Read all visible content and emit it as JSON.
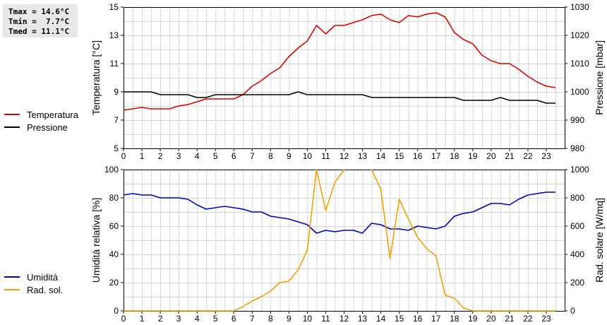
{
  "stats": {
    "tmax": "Tmax = 14.6°C",
    "tmin": "Tmin =  7.7°C",
    "tmed": "Tmed = 11.1°C"
  },
  "chart_data": [
    {
      "type": "line",
      "x_ticks": [
        0,
        1,
        2,
        3,
        4,
        5,
        6,
        7,
        8,
        9,
        10,
        11,
        12,
        13,
        14,
        15,
        16,
        17,
        18,
        19,
        20,
        21,
        22,
        23
      ],
      "xlim": [
        0,
        24
      ],
      "ylabel": "Temperatura [°C]",
      "ylim": [
        5,
        15
      ],
      "y_ticks": [
        5,
        7,
        9,
        11,
        13,
        15
      ],
      "y2label": "Pressione [mbar]",
      "y2lim": [
        980,
        1030
      ],
      "y2_ticks": [
        980,
        990,
        1000,
        1010,
        1020,
        1030
      ],
      "grid": true,
      "legend_placement": "left",
      "series": [
        {
          "name": "Temperatura",
          "axis": "left",
          "color": "#dd0000",
          "x": [
            0,
            0.5,
            1,
            1.5,
            2,
            2.5,
            3,
            3.5,
            4,
            4.5,
            5,
            5.5,
            6,
            6.5,
            7,
            7.5,
            8,
            8.5,
            9,
            9.5,
            10,
            10.5,
            11,
            11.5,
            12,
            12.5,
            13,
            13.5,
            14,
            14.5,
            15,
            15.5,
            16,
            16.5,
            17,
            17.5,
            18,
            18.5,
            19,
            19.5,
            20,
            20.5,
            21,
            21.5,
            22,
            22.5,
            23,
            23.5
          ],
          "y": [
            7.7,
            7.8,
            7.9,
            7.8,
            7.8,
            7.8,
            8.0,
            8.1,
            8.3,
            8.5,
            8.5,
            8.5,
            8.5,
            8.8,
            9.4,
            9.8,
            10.3,
            10.7,
            11.5,
            12.1,
            12.6,
            13.7,
            13.1,
            13.7,
            13.7,
            13.9,
            14.1,
            14.4,
            14.5,
            14.1,
            13.9,
            14.4,
            14.3,
            14.5,
            14.6,
            14.3,
            13.2,
            12.7,
            12.4,
            11.6,
            11.2,
            11.0,
            11.0,
            10.6,
            10.1,
            9.7,
            9.4,
            9.3
          ]
        },
        {
          "name": "Pressione",
          "axis": "right",
          "color": "#000000",
          "x": [
            0,
            0.5,
            1,
            1.5,
            2,
            2.5,
            3,
            3.5,
            4,
            4.5,
            5,
            5.5,
            6,
            6.5,
            7,
            7.5,
            8,
            8.5,
            9,
            9.5,
            10,
            10.5,
            11,
            11.5,
            12,
            12.5,
            13,
            13.5,
            14,
            14.5,
            15,
            15.5,
            16,
            16.5,
            17,
            17.5,
            18,
            18.5,
            19,
            19.5,
            20,
            20.5,
            21,
            21.5,
            22,
            22.5,
            23,
            23.5
          ],
          "y": [
            1000,
            1000,
            1000,
            1000,
            999,
            999,
            999,
            999,
            998,
            998,
            999,
            999,
            999,
            999,
            999,
            999,
            999,
            999,
            999,
            1000,
            999,
            999,
            999,
            999,
            999,
            999,
            999,
            998,
            998,
            998,
            998,
            998,
            998,
            998,
            998,
            998,
            998,
            997,
            997,
            997,
            997,
            998,
            997,
            997,
            997,
            997,
            996,
            996
          ]
        }
      ]
    },
    {
      "type": "line",
      "x_ticks": [
        0,
        1,
        2,
        3,
        4,
        5,
        6,
        7,
        8,
        9,
        10,
        11,
        12,
        13,
        14,
        15,
        16,
        17,
        18,
        19,
        20,
        21,
        22,
        23
      ],
      "xlim": [
        0,
        24
      ],
      "ylabel": "Umidità relativa [%]",
      "ylim": [
        0,
        100
      ],
      "y_ticks": [
        0,
        20,
        40,
        60,
        80,
        100
      ],
      "y2label": "Rad. solare [W/mq]",
      "y2lim": [
        0,
        1000
      ],
      "y2_ticks": [
        0,
        200,
        400,
        600,
        800,
        1000
      ],
      "grid": true,
      "legend_placement": "left",
      "series": [
        {
          "name": "Umidità",
          "axis": "left",
          "color": "#0000bb",
          "x": [
            0,
            0.5,
            1,
            1.5,
            2,
            2.5,
            3,
            3.5,
            4,
            4.5,
            5,
            5.5,
            6,
            6.5,
            7,
            7.5,
            8,
            8.5,
            9,
            9.5,
            10,
            10.5,
            11,
            11.5,
            12,
            12.5,
            13,
            13.5,
            14,
            14.5,
            15,
            15.5,
            16,
            16.5,
            17,
            17.5,
            18,
            18.5,
            19,
            19.5,
            20,
            20.5,
            21,
            21.5,
            22,
            22.5,
            23,
            23.5
          ],
          "y": [
            82,
            83,
            82,
            82,
            80,
            80,
            80,
            79,
            75,
            72,
            73,
            74,
            73,
            72,
            70,
            70,
            67,
            66,
            65,
            63,
            61,
            55,
            57,
            56,
            57,
            57,
            55,
            62,
            61,
            58,
            58,
            57,
            60,
            59,
            58,
            60,
            67,
            69,
            70,
            73,
            76,
            76,
            75,
            79,
            82,
            83,
            84,
            84
          ]
        },
        {
          "name": "Rad. sol.",
          "axis": "right",
          "color": "#f0a000",
          "x": [
            0,
            0.5,
            1,
            1.5,
            2,
            2.5,
            3,
            3.5,
            4,
            4.5,
            5,
            5.5,
            6,
            6.5,
            7,
            7.5,
            8,
            8.5,
            9,
            9.5,
            10,
            10.5,
            11,
            11.5,
            12,
            12.5,
            13,
            13.5,
            14,
            14.5,
            15,
            15.5,
            16,
            16.5,
            17,
            17.5,
            18,
            18.5,
            19,
            19.5,
            20,
            20.5,
            21,
            21.5,
            22,
            22.5,
            23,
            23.5
          ],
          "y": [
            0,
            0,
            0,
            0,
            0,
            0,
            0,
            0,
            0,
            0,
            0,
            0,
            0,
            30,
            70,
            100,
            140,
            200,
            210,
            290,
            430,
            1000,
            710,
            910,
            1000,
            1080,
            1080,
            1000,
            860,
            370,
            790,
            650,
            520,
            440,
            390,
            110,
            90,
            20,
            0,
            0,
            0,
            0,
            0,
            0,
            0,
            0,
            0,
            0
          ]
        }
      ]
    }
  ]
}
